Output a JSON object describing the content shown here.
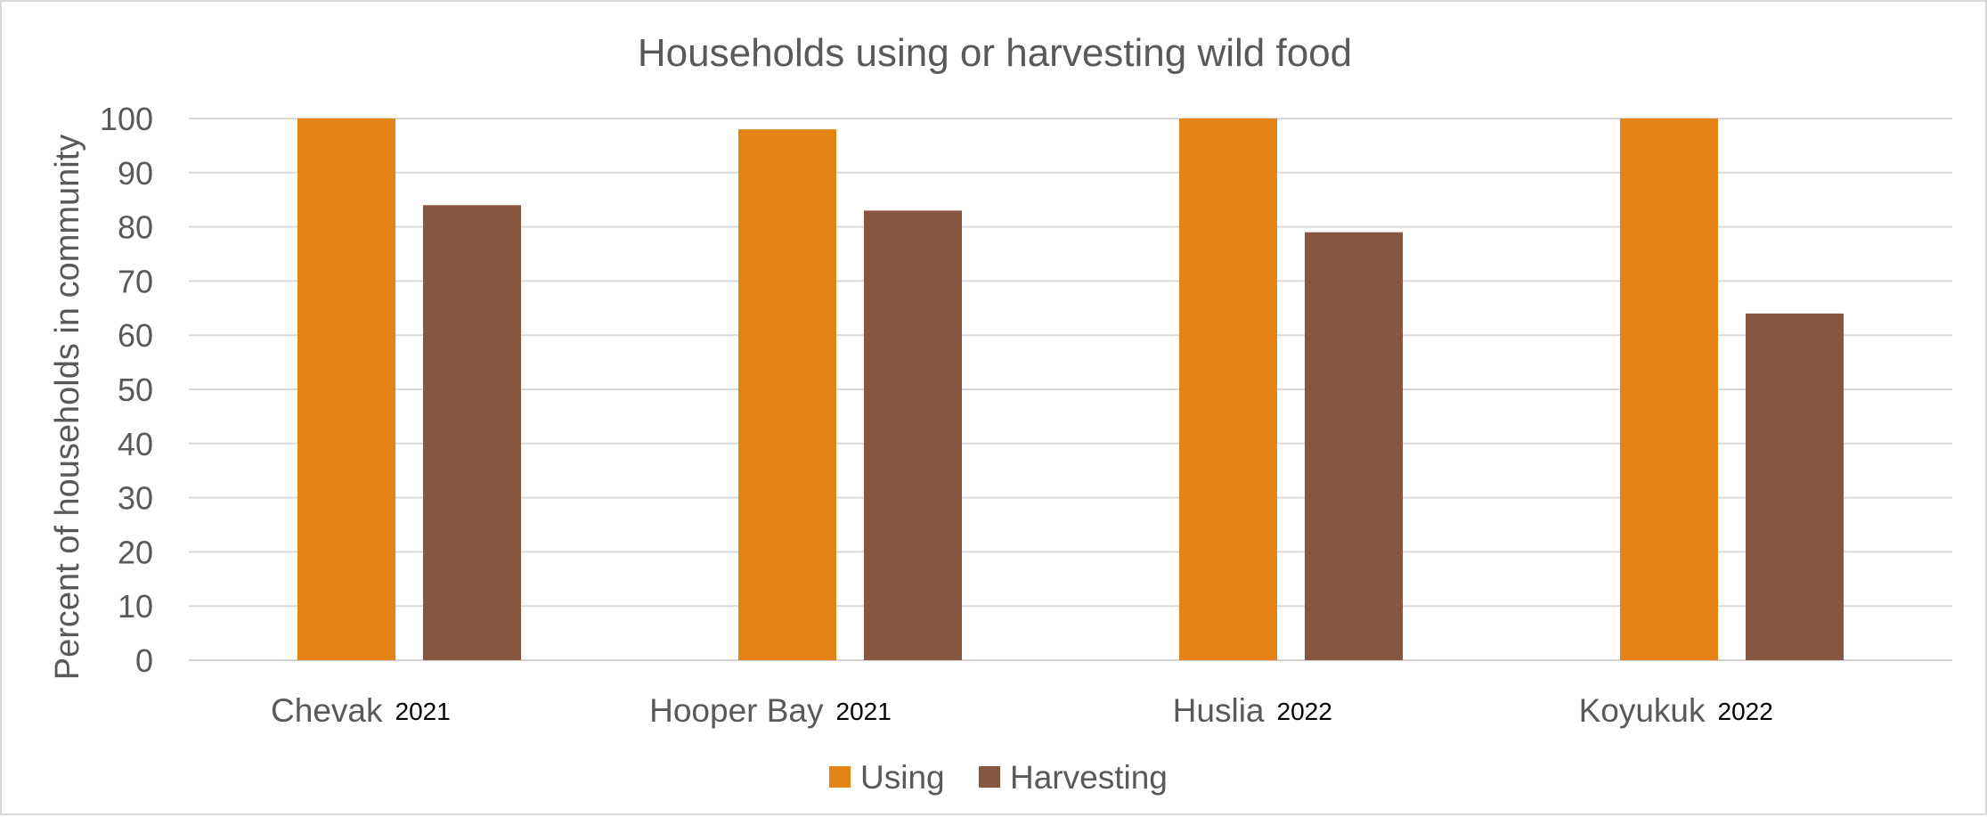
{
  "chart_data": {
    "type": "bar",
    "title": "Households using or harvesting wild food",
    "xlabel": "",
    "ylabel": "Percent of households in community",
    "ylim": [
      0,
      100
    ],
    "yticks": [
      0,
      10,
      20,
      30,
      40,
      50,
      60,
      70,
      80,
      90,
      100
    ],
    "grid": true,
    "legend_position": "bottom",
    "categories": [
      "Chevak",
      "Hooper Bay",
      "Huslia",
      "Koyukuk"
    ],
    "category_years": [
      "2021",
      "2021",
      "2022",
      "2022"
    ],
    "series": [
      {
        "name": "Using",
        "color": "#E58314",
        "values": [
          100,
          98,
          100,
          100
        ]
      },
      {
        "name": "Harvesting",
        "color": "#865641",
        "values": [
          84,
          83,
          79,
          64
        ]
      }
    ]
  }
}
